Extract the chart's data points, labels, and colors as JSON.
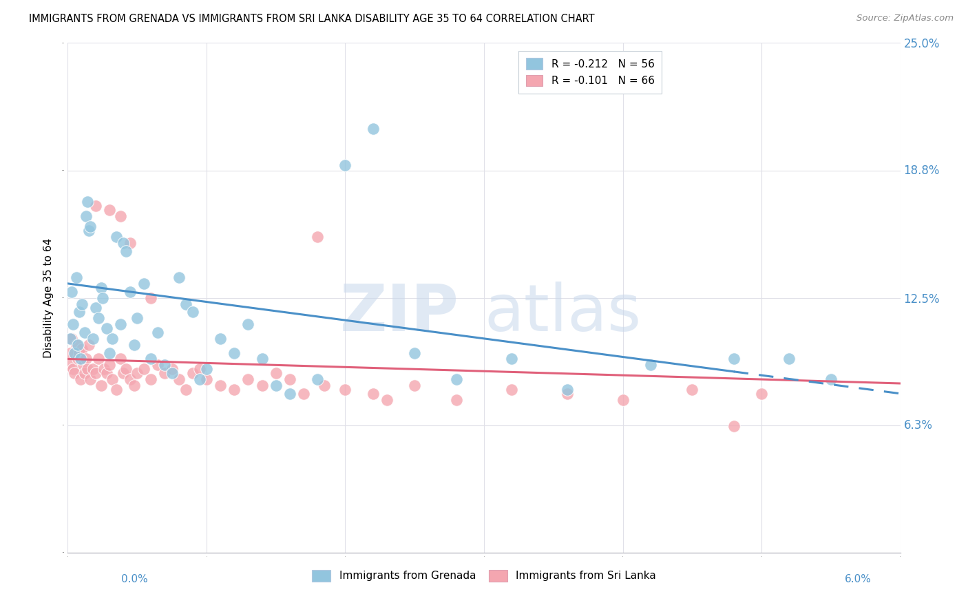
{
  "title": "IMMIGRANTS FROM GRENADA VS IMMIGRANTS FROM SRI LANKA DISABILITY AGE 35 TO 64 CORRELATION CHART",
  "source": "Source: ZipAtlas.com",
  "ylabel": "Disability Age 35 to 64",
  "right_yticks": [
    6.3,
    12.5,
    18.8,
    25.0
  ],
  "right_ytick_labels": [
    "6.3%",
    "12.5%",
    "18.8%",
    "25.0%"
  ],
  "xlim": [
    0.0,
    6.0
  ],
  "ylim": [
    0.0,
    25.0
  ],
  "color_blue": "#92c5de",
  "color_pink": "#f4a6b0",
  "color_blue_line": "#4a90c8",
  "color_pink_line": "#e0607a",
  "watermark_zip": "ZIP",
  "watermark_atlas": "atlas",
  "R_grenada": -0.212,
  "N_grenada": 56,
  "R_srilanka": -0.101,
  "N_srilanka": 66,
  "regline_grenada_y0": 13.2,
  "regline_grenada_y1": 7.8,
  "regline_srilanka_y0": 9.5,
  "regline_srilanka_y1": 8.3,
  "regline_solid_end_grenada": 4.8,
  "scatter_grenada_x": [
    0.02,
    0.03,
    0.04,
    0.05,
    0.06,
    0.07,
    0.08,
    0.09,
    0.1,
    0.12,
    0.13,
    0.14,
    0.15,
    0.16,
    0.18,
    0.2,
    0.22,
    0.24,
    0.25,
    0.28,
    0.3,
    0.32,
    0.35,
    0.38,
    0.4,
    0.42,
    0.45,
    0.48,
    0.5,
    0.55,
    0.6,
    0.65,
    0.7,
    0.75,
    0.8,
    0.85,
    0.9,
    0.95,
    1.0,
    1.1,
    1.2,
    1.3,
    1.4,
    1.5,
    1.6,
    1.8,
    2.0,
    2.2,
    2.5,
    2.8,
    3.2,
    3.6,
    4.2,
    4.8,
    5.2,
    5.5
  ],
  "scatter_grenada_y": [
    10.5,
    12.8,
    11.2,
    9.8,
    13.5,
    10.2,
    11.8,
    9.5,
    12.2,
    10.8,
    16.5,
    17.2,
    15.8,
    16.0,
    10.5,
    12.0,
    11.5,
    13.0,
    12.5,
    11.0,
    9.8,
    10.5,
    15.5,
    11.2,
    15.2,
    14.8,
    12.8,
    10.2,
    11.5,
    13.2,
    9.5,
    10.8,
    9.2,
    8.8,
    13.5,
    12.2,
    11.8,
    8.5,
    9.0,
    10.5,
    9.8,
    11.2,
    9.5,
    8.2,
    7.8,
    8.5,
    19.0,
    20.8,
    9.8,
    8.5,
    9.5,
    8.0,
    9.2,
    9.5,
    9.5,
    8.5
  ],
  "scatter_srilanka_x": [
    0.01,
    0.02,
    0.03,
    0.04,
    0.05,
    0.06,
    0.07,
    0.08,
    0.09,
    0.1,
    0.11,
    0.12,
    0.13,
    0.14,
    0.15,
    0.16,
    0.18,
    0.2,
    0.22,
    0.24,
    0.26,
    0.28,
    0.3,
    0.32,
    0.35,
    0.38,
    0.4,
    0.42,
    0.45,
    0.48,
    0.5,
    0.55,
    0.6,
    0.65,
    0.7,
    0.75,
    0.8,
    0.85,
    0.9,
    0.95,
    1.0,
    1.1,
    1.2,
    1.3,
    1.4,
    1.5,
    1.6,
    1.7,
    1.85,
    2.0,
    2.2,
    2.5,
    2.8,
    3.2,
    3.6,
    4.0,
    4.5,
    5.0,
    4.8,
    2.3,
    0.45,
    0.3,
    0.2,
    1.8,
    0.6,
    0.38
  ],
  "scatter_srilanka_y": [
    9.2,
    9.8,
    10.5,
    9.0,
    8.8,
    10.2,
    9.5,
    9.8,
    8.5,
    10.0,
    9.2,
    8.8,
    9.5,
    9.0,
    10.2,
    8.5,
    9.0,
    8.8,
    9.5,
    8.2,
    9.0,
    8.8,
    9.2,
    8.5,
    8.0,
    9.5,
    8.8,
    9.0,
    8.5,
    8.2,
    8.8,
    9.0,
    8.5,
    9.2,
    8.8,
    9.0,
    8.5,
    8.0,
    8.8,
    9.0,
    8.5,
    8.2,
    8.0,
    8.5,
    8.2,
    8.8,
    8.5,
    7.8,
    8.2,
    8.0,
    7.8,
    8.2,
    7.5,
    8.0,
    7.8,
    7.5,
    8.0,
    7.8,
    6.2,
    7.5,
    15.2,
    16.8,
    17.0,
    15.5,
    12.5,
    16.5
  ]
}
